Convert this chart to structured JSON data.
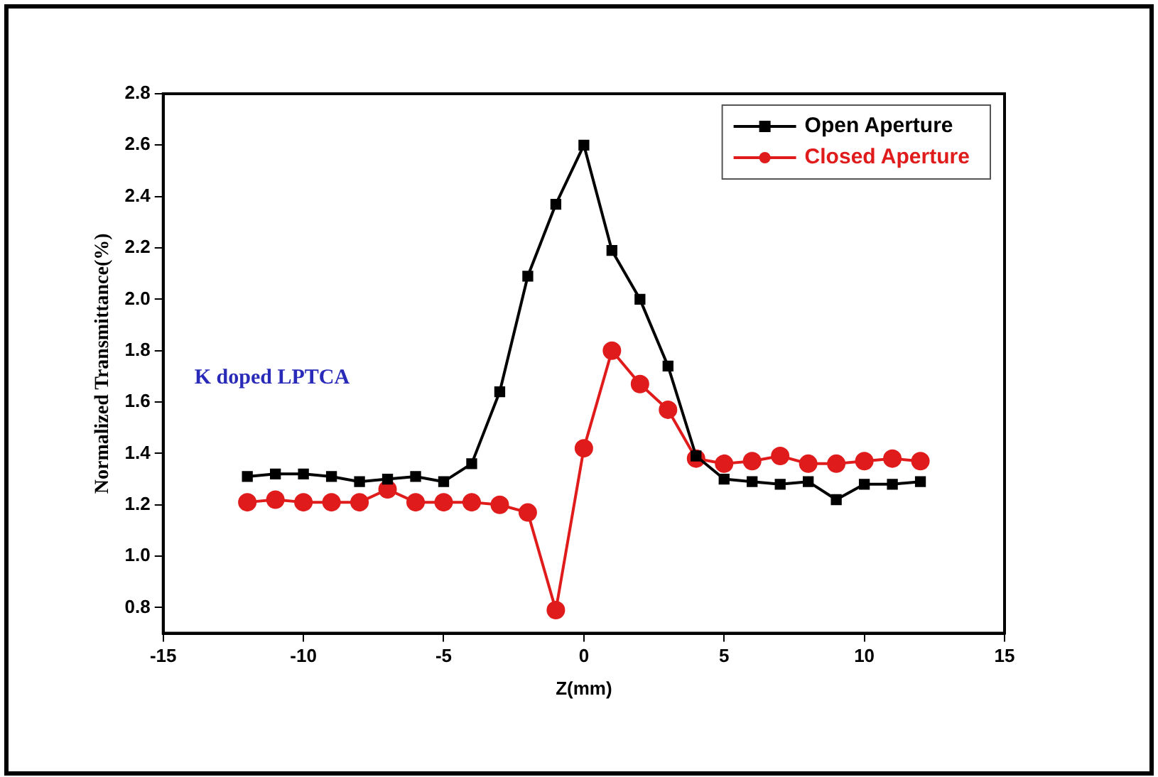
{
  "chart_data": {
    "type": "line",
    "xlabel": "Z(mm)",
    "ylabel": "Normalized Transmittance(%)",
    "annotations": [
      "K doped LPTCA"
    ],
    "x": [
      -12,
      -11,
      -10,
      -9,
      -8,
      -7,
      -6,
      -5,
      -4,
      -3,
      -2,
      -1,
      0,
      1,
      2,
      3,
      4,
      5,
      6,
      7,
      8,
      9,
      10,
      11,
      12
    ],
    "series": [
      {
        "name": "Open Aperture",
        "color": "#000000",
        "marker": "square",
        "values": [
          1.31,
          1.32,
          1.32,
          1.31,
          1.29,
          1.3,
          1.31,
          1.29,
          1.36,
          1.64,
          2.09,
          2.37,
          2.6,
          2.19,
          2.0,
          1.74,
          1.39,
          1.3,
          1.29,
          1.28,
          1.29,
          1.22,
          1.28,
          1.28,
          1.29
        ]
      },
      {
        "name": "Closed Aperture",
        "color": "#e01b1b",
        "marker": "circle",
        "values": [
          1.21,
          1.22,
          1.21,
          1.21,
          1.21,
          1.26,
          1.21,
          1.21,
          1.21,
          1.2,
          1.17,
          0.79,
          1.42,
          1.8,
          1.67,
          1.57,
          1.38,
          1.36,
          1.37,
          1.39,
          1.36,
          1.36,
          1.37,
          1.38,
          1.37
        ]
      }
    ],
    "xlim": [
      -15,
      15
    ],
    "xticks": [
      -15,
      -10,
      -5,
      0,
      5,
      10,
      15
    ],
    "ylim": [
      0.7,
      2.8
    ],
    "yticks": [
      0.8,
      {
        "value": 1,
        "label": "1.0"
      },
      1.2,
      1.4,
      1.6,
      1.8,
      {
        "value": 2,
        "label": "2.0"
      },
      2.2,
      2.4,
      2.6,
      2.8
    ],
    "grid": false,
    "legend": "top right",
    "line_style": "solid"
  }
}
